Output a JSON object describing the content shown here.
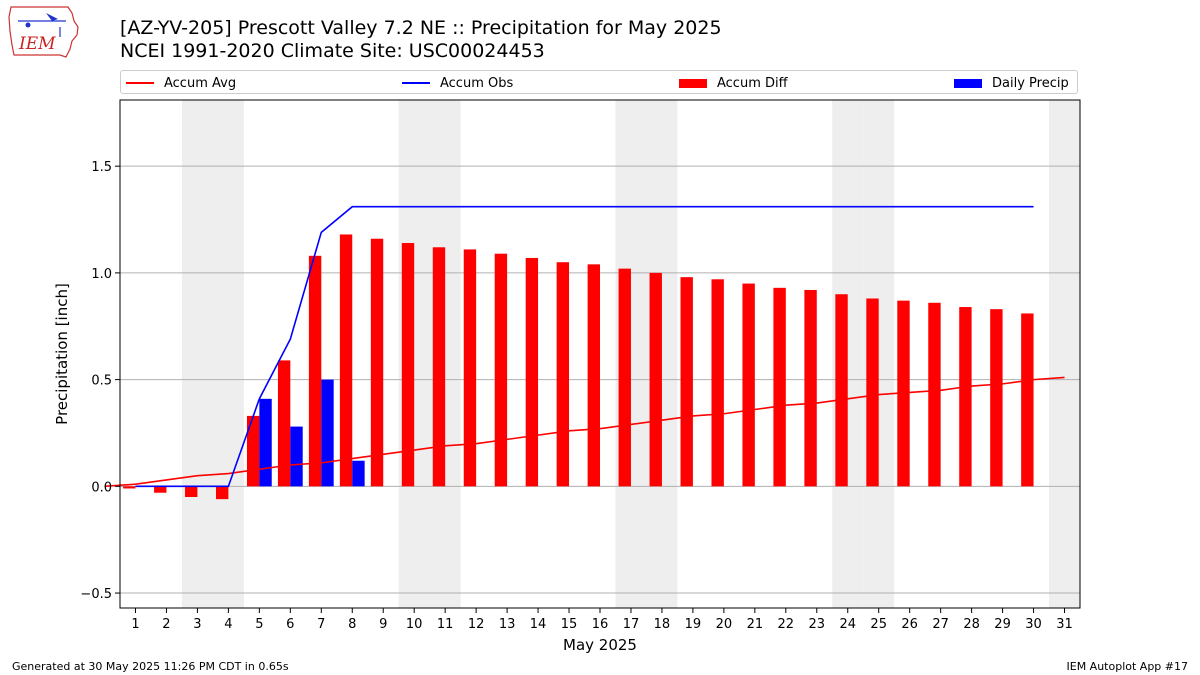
{
  "header": {
    "title_line1": "[AZ-YV-205] Prescott Valley 7.2 NE :: Precipitation for May 2025",
    "title_line2": "NCEI 1991-2020 Climate Site: USC00024453"
  },
  "logo": {
    "text": "IEM",
    "icon": "iowa-state-outline-logo"
  },
  "footer": {
    "left": "Generated at 30 May 2025 11:26 PM CDT in 0.65s",
    "right": "IEM Autoplot App #17"
  },
  "colors": {
    "avg": "#ff0000",
    "obs": "#0000ff",
    "diff": "#ff0000",
    "daily": "#0000ff",
    "weekend": "#eeeeee",
    "grid": "#b0b0b0"
  },
  "chart_data": {
    "type": "bar",
    "xlabel": "May 2025",
    "ylabel": "Precipitation [inch]",
    "x": [
      1,
      2,
      3,
      4,
      5,
      6,
      7,
      8,
      9,
      10,
      11,
      12,
      13,
      14,
      15,
      16,
      17,
      18,
      19,
      20,
      21,
      22,
      23,
      24,
      25,
      26,
      27,
      28,
      29,
      30,
      31
    ],
    "xlim": [
      0.5,
      31.5
    ],
    "ylim": [
      -0.57,
      1.81
    ],
    "yticks": [
      -0.5,
      0.0,
      0.5,
      1.0,
      1.5
    ],
    "ytick_labels": [
      "−0.5",
      "0.0",
      "0.5",
      "1.0",
      "1.5"
    ],
    "grid": true,
    "legend_position": "top",
    "weekend_days": [
      3,
      4,
      10,
      11,
      17,
      18,
      24,
      25,
      31
    ],
    "series": [
      {
        "name": "Accum Avg",
        "kind": "line",
        "x": [
          0,
          1,
          2,
          3,
          4,
          5,
          6,
          7,
          8,
          9,
          10,
          11,
          12,
          13,
          14,
          15,
          16,
          17,
          18,
          19,
          20,
          21,
          22,
          23,
          24,
          25,
          26,
          27,
          28,
          29,
          30,
          31
        ],
        "values": [
          0.0,
          0.01,
          0.03,
          0.05,
          0.06,
          0.08,
          0.1,
          0.11,
          0.13,
          0.15,
          0.17,
          0.19,
          0.2,
          0.22,
          0.24,
          0.26,
          0.27,
          0.29,
          0.31,
          0.33,
          0.34,
          0.36,
          0.38,
          0.39,
          0.41,
          0.43,
          0.44,
          0.45,
          0.47,
          0.48,
          0.5,
          0.51
        ]
      },
      {
        "name": "Accum Obs",
        "kind": "line",
        "x": [
          1,
          2,
          3,
          4,
          5,
          6,
          7,
          8,
          9,
          10,
          11,
          12,
          13,
          14,
          15,
          16,
          17,
          18,
          19,
          20,
          21,
          22,
          23,
          24,
          25,
          26,
          27,
          28,
          29,
          30
        ],
        "values": [
          0.0,
          0.0,
          0.0,
          0.0,
          0.41,
          0.69,
          1.19,
          1.31,
          1.31,
          1.31,
          1.31,
          1.31,
          1.31,
          1.31,
          1.31,
          1.31,
          1.31,
          1.31,
          1.31,
          1.31,
          1.31,
          1.31,
          1.31,
          1.31,
          1.31,
          1.31,
          1.31,
          1.31,
          1.31,
          1.31
        ]
      },
      {
        "name": "Accum Diff",
        "kind": "bar",
        "x": [
          1,
          2,
          3,
          4,
          5,
          6,
          7,
          8,
          9,
          10,
          11,
          12,
          13,
          14,
          15,
          16,
          17,
          18,
          19,
          20,
          21,
          22,
          23,
          24,
          25,
          26,
          27,
          28,
          29,
          30
        ],
        "values": [
          -0.01,
          -0.03,
          -0.05,
          -0.06,
          0.33,
          0.59,
          1.08,
          1.18,
          1.16,
          1.14,
          1.12,
          1.11,
          1.09,
          1.07,
          1.05,
          1.04,
          1.02,
          1.0,
          0.98,
          0.97,
          0.95,
          0.93,
          0.92,
          0.9,
          0.88,
          0.87,
          0.86,
          0.84,
          0.83,
          0.81
        ]
      },
      {
        "name": "Daily Precip",
        "kind": "bar",
        "x": [
          5,
          6,
          7,
          8
        ],
        "values": [
          0.41,
          0.28,
          0.5,
          0.12
        ]
      }
    ]
  }
}
